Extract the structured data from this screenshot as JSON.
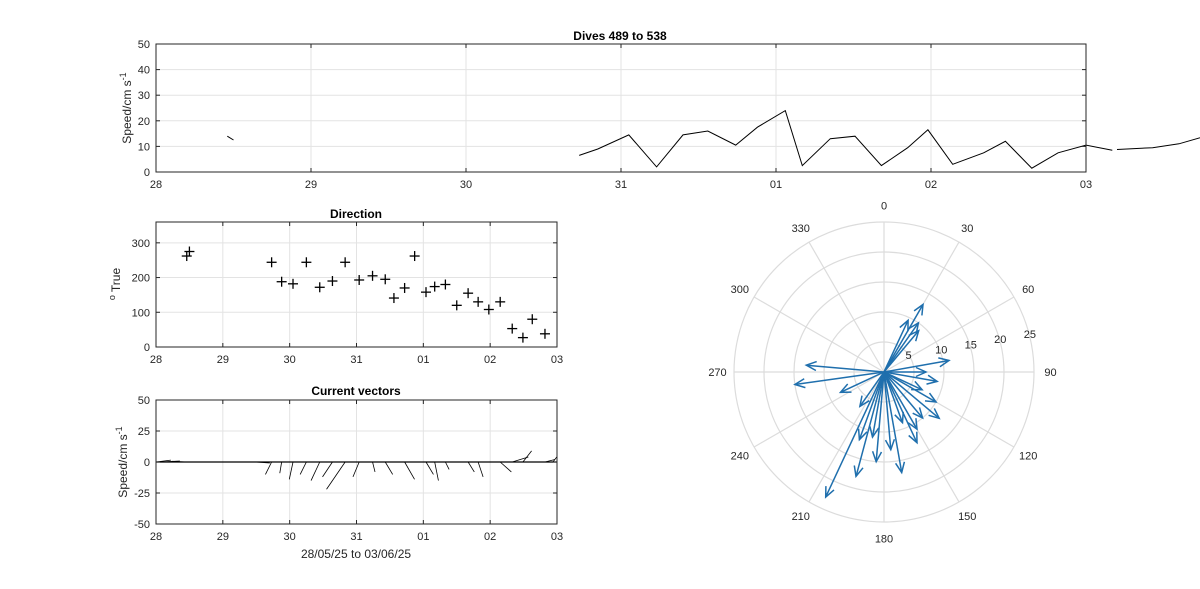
{
  "figure": {
    "background": "#ffffff",
    "axis_color": "#262626",
    "grid_color": "#e3e3e3",
    "polar_color": "#1f6fad"
  },
  "chart_data": [
    {
      "id": "speed",
      "type": "line",
      "title": "Dives 489 to 538",
      "ylabel": "Speed/cm s",
      "ylabel_exp": "-1",
      "xlim": [
        0,
        6
      ],
      "ylim": [
        0,
        50
      ],
      "yticks": [
        0,
        10,
        20,
        30,
        40,
        50
      ],
      "xtick_labels": [
        "28",
        "29",
        "30",
        "31",
        "01",
        "02",
        "03"
      ],
      "grid": true,
      "series": [
        {
          "x": [
            0.46,
            0.5
          ],
          "y": [
            14.0,
            12.5
          ]
        },
        {
          "x": [
            2.73,
            2.85,
            3.05,
            3.23,
            3.4,
            3.56,
            3.74,
            3.88,
            4.06,
            4.17,
            4.35,
            4.51,
            4.68,
            4.85,
            4.98,
            5.14,
            5.34,
            5.48,
            5.65,
            5.82,
            6.0,
            6.17
          ],
          "y": [
            6.5,
            9.0,
            14.5,
            2.0,
            14.5,
            16.0,
            10.5,
            17.5,
            24.0,
            2.5,
            13.0,
            14.0,
            2.5,
            9.5,
            16.5,
            3.0,
            7.5,
            12.0,
            1.5,
            7.5,
            10.5,
            8.5
          ]
        },
        {
          "x": [
            6.2,
            6.43,
            6.6,
            6.8
          ],
          "y": [
            8.8,
            9.5,
            11.0,
            14.5
          ]
        }
      ],
      "line_color": "#000000"
    },
    {
      "id": "direction",
      "type": "scatter",
      "title": "Direction",
      "ylabel": "True",
      "ylabel_prefix": "o",
      "xlim": [
        0,
        6
      ],
      "ylim": [
        0,
        360
      ],
      "yticks": [
        0,
        100,
        200,
        300
      ],
      "xtick_labels": [
        "28",
        "29",
        "30",
        "31",
        "01",
        "02",
        "03"
      ],
      "grid": true,
      "marker": "+",
      "x": [
        0.46,
        0.5,
        1.73,
        1.88,
        2.05,
        2.25,
        2.45,
        2.64,
        2.83,
        3.04,
        3.24,
        3.43,
        3.56,
        3.72,
        3.87,
        4.04,
        4.17,
        4.33,
        4.5,
        4.67,
        4.82,
        4.98,
        5.15,
        5.33,
        5.49,
        5.63,
        5.82
      ],
      "y": [
        262,
        275,
        244,
        188,
        182,
        244,
        172,
        190,
        244,
        193,
        205,
        195,
        141,
        170,
        262,
        158,
        174,
        180,
        120,
        155,
        130,
        108,
        130,
        53,
        27,
        80,
        38
      ]
    },
    {
      "id": "vectors",
      "type": "line",
      "title": "Current vectors",
      "ylabel": "Speed/cm s",
      "ylabel_exp": "-1",
      "xlabel": "28/05/25 to 03/06/25",
      "xlim": [
        0,
        6
      ],
      "ylim": [
        -50,
        50
      ],
      "yticks": [
        -50,
        -25,
        0,
        25,
        50
      ],
      "xtick_labels": [
        "28",
        "29",
        "30",
        "31",
        "01",
        "02",
        "03"
      ],
      "grid": true,
      "line_color": "#000000",
      "baseline": 0,
      "vectors": [
        {
          "x": 0.0,
          "u": 12.0,
          "v": 1.5
        },
        {
          "x": 0.06,
          "u": 16.0,
          "v": 0.8
        },
        {
          "x": 0.46,
          "u": -12.0,
          "v": 0.6
        },
        {
          "x": 1.48,
          "u": 12.0,
          "v": -0.8
        },
        {
          "x": 1.73,
          "u": -5.0,
          "v": -10.0
        },
        {
          "x": 1.88,
          "u": -1.5,
          "v": -9.0
        },
        {
          "x": 2.05,
          "u": -3.0,
          "v": -14.0
        },
        {
          "x": 2.25,
          "u": -5.0,
          "v": -10.0
        },
        {
          "x": 2.45,
          "u": -7.0,
          "v": -15.0
        },
        {
          "x": 2.64,
          "u": -8.0,
          "v": -12.0
        },
        {
          "x": 2.83,
          "u": -15.0,
          "v": -22.0
        },
        {
          "x": 3.04,
          "u": -5.0,
          "v": -12.0
        },
        {
          "x": 3.24,
          "u": 2.0,
          "v": -8.0
        },
        {
          "x": 3.43,
          "u": 6.0,
          "v": -10.0
        },
        {
          "x": 3.72,
          "u": 8.0,
          "v": -14.0
        },
        {
          "x": 4.04,
          "u": 6.0,
          "v": -10.0
        },
        {
          "x": 4.17,
          "u": 3.0,
          "v": -15.0
        },
        {
          "x": 4.33,
          "u": 3.0,
          "v": -6.0
        },
        {
          "x": 4.67,
          "u": 5.0,
          "v": -8.0
        },
        {
          "x": 4.82,
          "u": 4.0,
          "v": -12.0
        },
        {
          "x": 5.15,
          "u": 9.0,
          "v": -8.0
        },
        {
          "x": 5.33,
          "u": 13.0,
          "v": 4.0
        },
        {
          "x": 5.49,
          "u": 7.0,
          "v": 9.0
        },
        {
          "x": 5.82,
          "u": 8.0,
          "v": 2.0
        },
        {
          "x": 5.94,
          "u": 3.0,
          "v": 4.0
        }
      ]
    },
    {
      "id": "compass",
      "type": "polar",
      "rmax": 25,
      "rticks": [
        5,
        10,
        15,
        20,
        25
      ],
      "angle_ticks": [
        0,
        30,
        60,
        90,
        120,
        150,
        180,
        210,
        240,
        270,
        300,
        330
      ],
      "direction": "clockwise",
      "zero": "top",
      "arrow_color": "#1f6fad",
      "arrows": [
        {
          "theta": 30,
          "r": 13.0
        },
        {
          "theta": 35,
          "r": 10.0
        },
        {
          "theta": 40,
          "r": 9.0
        },
        {
          "theta": 25,
          "r": 9.5
        },
        {
          "theta": 80,
          "r": 11.0
        },
        {
          "theta": 90,
          "r": 7.0
        },
        {
          "theta": 100,
          "r": 9.0
        },
        {
          "theta": 115,
          "r": 7.0
        },
        {
          "theta": 120,
          "r": 10.0
        },
        {
          "theta": 130,
          "r": 12.0
        },
        {
          "theta": 140,
          "r": 10.0
        },
        {
          "theta": 150,
          "r": 11.0
        },
        {
          "theta": 155,
          "r": 13.0
        },
        {
          "theta": 160,
          "r": 9.0
        },
        {
          "theta": 170,
          "r": 17.0
        },
        {
          "theta": 175,
          "r": 13.0
        },
        {
          "theta": 185,
          "r": 15.0
        },
        {
          "theta": 190,
          "r": 11.0
        },
        {
          "theta": 195,
          "r": 18.0
        },
        {
          "theta": 200,
          "r": 12.0
        },
        {
          "theta": 205,
          "r": 23.0
        },
        {
          "theta": 215,
          "r": 7.0
        },
        {
          "theta": 245,
          "r": 8.0
        },
        {
          "theta": 262,
          "r": 15.0
        },
        {
          "theta": 275,
          "r": 13.0
        }
      ]
    }
  ]
}
